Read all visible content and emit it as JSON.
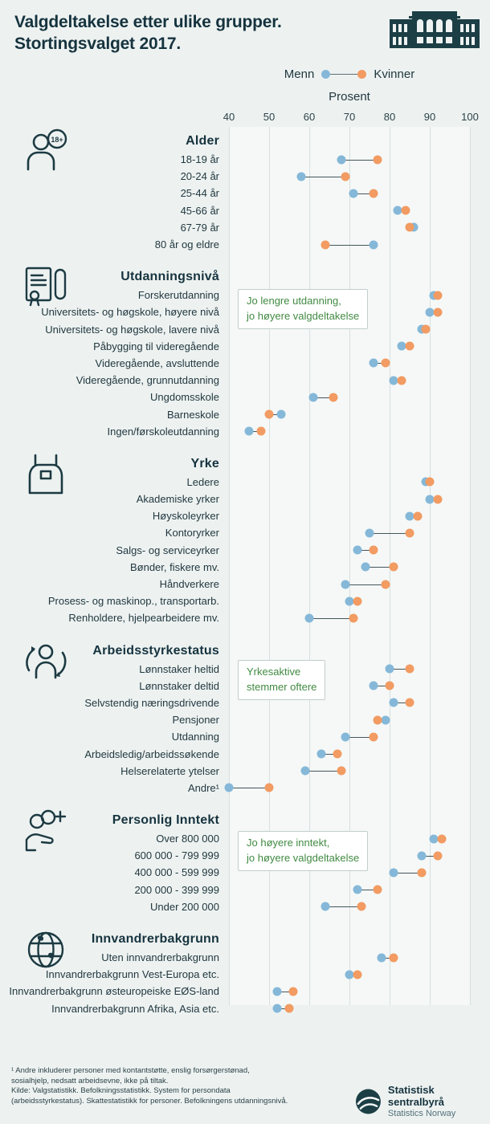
{
  "header": {
    "title_line1": "Valgdeltakelse etter ulike grupper.",
    "title_line2": "Stortingsvalget 2017."
  },
  "legend": {
    "menn_label": "Menn",
    "kvinner_label": "Kvinner"
  },
  "colors": {
    "menn": "#85b8d8",
    "kvinner": "#f29b62",
    "accent_green": "#418a42",
    "ink": "#16333e",
    "grid": "#d8e0e0",
    "background": "#edf2f1"
  },
  "chart_data": {
    "type": "scatter",
    "subtype": "dumbbell_dot_plot",
    "title": "Valgdeltakelse etter ulike grupper. Stortingsvalget 2017.",
    "unit": "prosent",
    "axis": {
      "label": "Prosent",
      "min": 40,
      "max": 100,
      "ticks": [
        40,
        50,
        60,
        70,
        80,
        90,
        100
      ],
      "orientation": "horizontal",
      "grid": true
    },
    "series": [
      {
        "name": "Menn",
        "color": "#85b8d8"
      },
      {
        "name": "Kvinner",
        "color": "#f29b62"
      }
    ],
    "sections": [
      {
        "name": "Alder",
        "icon": "age-18plus-icon",
        "rows": [
          {
            "label": "18-19 år",
            "menn": 68,
            "kvinner": 77
          },
          {
            "label": "20-24 år",
            "menn": 58,
            "kvinner": 69
          },
          {
            "label": "25-44 år",
            "menn": 71,
            "kvinner": 76
          },
          {
            "label": "45-66 år",
            "menn": 82,
            "kvinner": 84
          },
          {
            "label": "67-79 år",
            "menn": 86,
            "kvinner": 85
          },
          {
            "label": "80 år og eldre",
            "menn": 76,
            "kvinner": 64
          }
        ]
      },
      {
        "name": "Utdanningsnivå",
        "icon": "education-diploma-icon",
        "rows": [
          {
            "label": "Forskerutdanning",
            "menn": 91,
            "kvinner": 92
          },
          {
            "label": "Universitets- og høgskole, høyere nivå",
            "menn": 90,
            "kvinner": 92
          },
          {
            "label": "Universitets- og høgskole, lavere nivå",
            "menn": 88,
            "kvinner": 89
          },
          {
            "label": "Påbygging til videregående",
            "menn": 83,
            "kvinner": 85
          },
          {
            "label": "Videregående, avsluttende",
            "menn": 76,
            "kvinner": 79
          },
          {
            "label": "Videregående, grunnutdanning",
            "menn": 81,
            "kvinner": 83
          },
          {
            "label": "Ungdomsskole",
            "menn": 61,
            "kvinner": 66
          },
          {
            "label": "Barneskole",
            "menn": 53,
            "kvinner": 50
          },
          {
            "label": "Ingen/førskoleutdanning",
            "menn": 45,
            "kvinner": 48
          }
        ]
      },
      {
        "name": "Yrke",
        "icon": "occupation-apron-icon",
        "rows": [
          {
            "label": "Ledere",
            "menn": 89,
            "kvinner": 90
          },
          {
            "label": "Akademiske yrker",
            "menn": 90,
            "kvinner": 92
          },
          {
            "label": "Høyskoleyrker",
            "menn": 85,
            "kvinner": 87
          },
          {
            "label": "Kontoryrker",
            "menn": 75,
            "kvinner": 85
          },
          {
            "label": "Salgs- og serviceyrker",
            "menn": 72,
            "kvinner": 76
          },
          {
            "label": "Bønder, fiskere mv.",
            "menn": 74,
            "kvinner": 81
          },
          {
            "label": "Håndverkere",
            "menn": 69,
            "kvinner": 79
          },
          {
            "label": "Prosess- og maskinop., transportarb.",
            "menn": 70,
            "kvinner": 72
          },
          {
            "label": "Renholdere, hjelpearbeidere mv.",
            "menn": 60,
            "kvinner": 71
          }
        ]
      },
      {
        "name": "Arbeidsstyrkestatus",
        "icon": "workforce-person-icon",
        "rows": [
          {
            "label": "Lønnstaker heltid",
            "menn": 80,
            "kvinner": 85
          },
          {
            "label": "Lønnstaker deltid",
            "menn": 76,
            "kvinner": 80
          },
          {
            "label": "Selvstendig næringsdrivende",
            "menn": 81,
            "kvinner": 85
          },
          {
            "label": "Pensjoner",
            "menn": 79,
            "kvinner": 77
          },
          {
            "label": "Utdanning",
            "menn": 69,
            "kvinner": 76
          },
          {
            "label": "Arbeidsledig/arbeidssøkende",
            "menn": 63,
            "kvinner": 67
          },
          {
            "label": "Helserelaterte ytelser",
            "menn": 59,
            "kvinner": 68
          },
          {
            "label": "Andre¹",
            "menn": 40,
            "kvinner": 50
          }
        ]
      },
      {
        "name": "Personlig Inntekt",
        "icon": "income-hand-coins-icon",
        "rows": [
          {
            "label": "Over 800 000",
            "menn": 91,
            "kvinner": 93
          },
          {
            "label": "600 000 - 799 999",
            "menn": 88,
            "kvinner": 92
          },
          {
            "label": "400 000 - 599 999",
            "menn": 81,
            "kvinner": 88
          },
          {
            "label": "200 000 - 399 999",
            "menn": 72,
            "kvinner": 77
          },
          {
            "label": "Under 200 000",
            "menn": 64,
            "kvinner": 73
          }
        ]
      },
      {
        "name": "Innvandrerbakgrunn",
        "icon": "globe-icon",
        "rows": [
          {
            "label": "Uten innvandrerbakgrunn",
            "menn": 78,
            "kvinner": 81
          },
          {
            "label": "Innvandrerbakgrunn Vest-Europa etc.",
            "menn": 70,
            "kvinner": 72
          },
          {
            "label": "Innvandrerbakgrunn østeuropeiske EØS-land",
            "menn": 52,
            "kvinner": 56
          },
          {
            "label": "Innvandrerbakgrunn Afrika, Asia etc.",
            "menn": 52,
            "kvinner": 55
          }
        ]
      }
    ]
  },
  "annotations": [
    {
      "line1": "Jo lengre utdanning,",
      "line2": "jo høyere valgdeltakelse"
    },
    {
      "line1": "Yrkesaktive",
      "line2": "stemmer oftere"
    },
    {
      "line1": "Jo høyere inntekt,",
      "line2": "jo høyere valgdeltakelse"
    }
  ],
  "footer": {
    "lines": [
      "¹ Andre inkluderer personer med kontantstøtte, enslig forsørgerstønad,",
      "sosialhjelp, nedsatt arbeidsevne, ikke på tiltak.",
      "Kilde: Valgstatistikk. Befolkningsstatistikk. System for persondata",
      "(arbeidsstyrkestatus). Skattestatistikk for personer. Befolkningens utdanningsnivå."
    ],
    "org_name": "Statistisk sentralbyrå",
    "org_name_en": "Statistics Norway"
  }
}
